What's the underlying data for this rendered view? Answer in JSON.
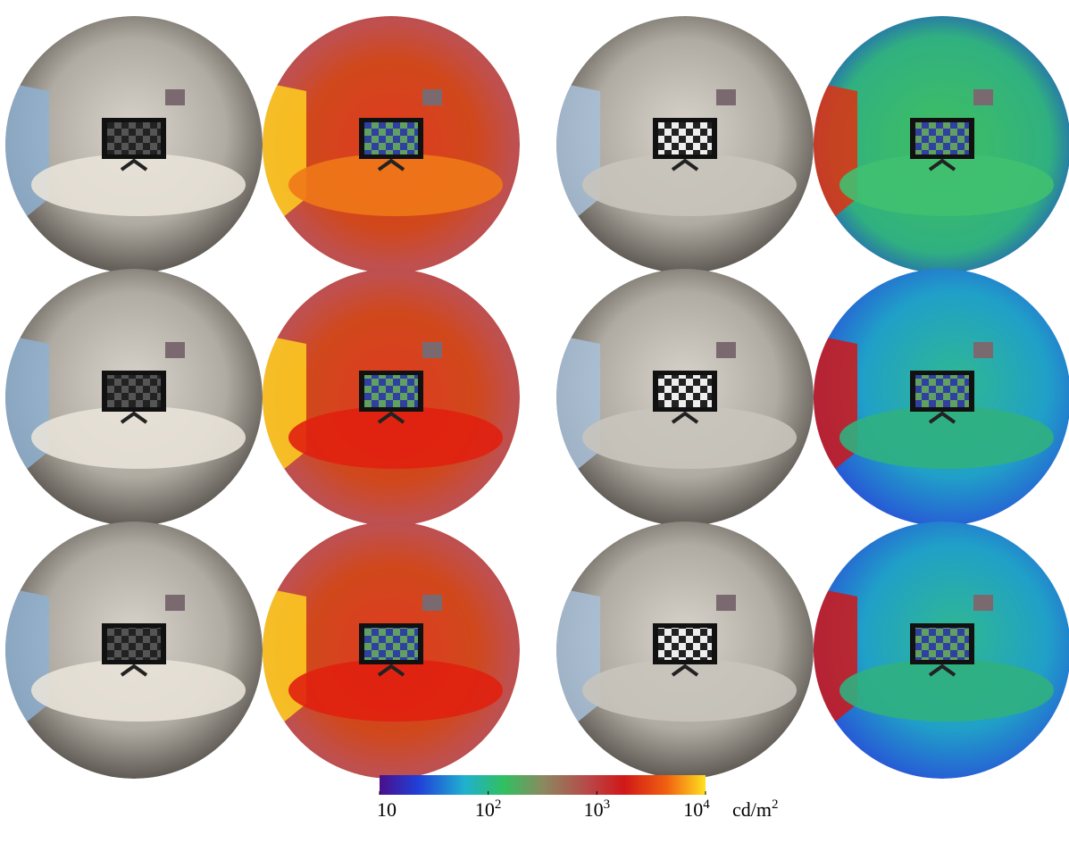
{
  "colorbar": {
    "scale": "log",
    "lim": [
      10,
      10000
    ],
    "ticks": [
      {
        "value": 10,
        "base": "10"
      },
      {
        "value": 100,
        "base": "10",
        "exponent": "2"
      },
      {
        "value": 1000,
        "base": "10",
        "exponent": "3"
      },
      {
        "value": 10000,
        "base": "10",
        "exponent": "4"
      }
    ],
    "unit": {
      "base": "cd/m",
      "exponent": "2"
    }
  }
}
